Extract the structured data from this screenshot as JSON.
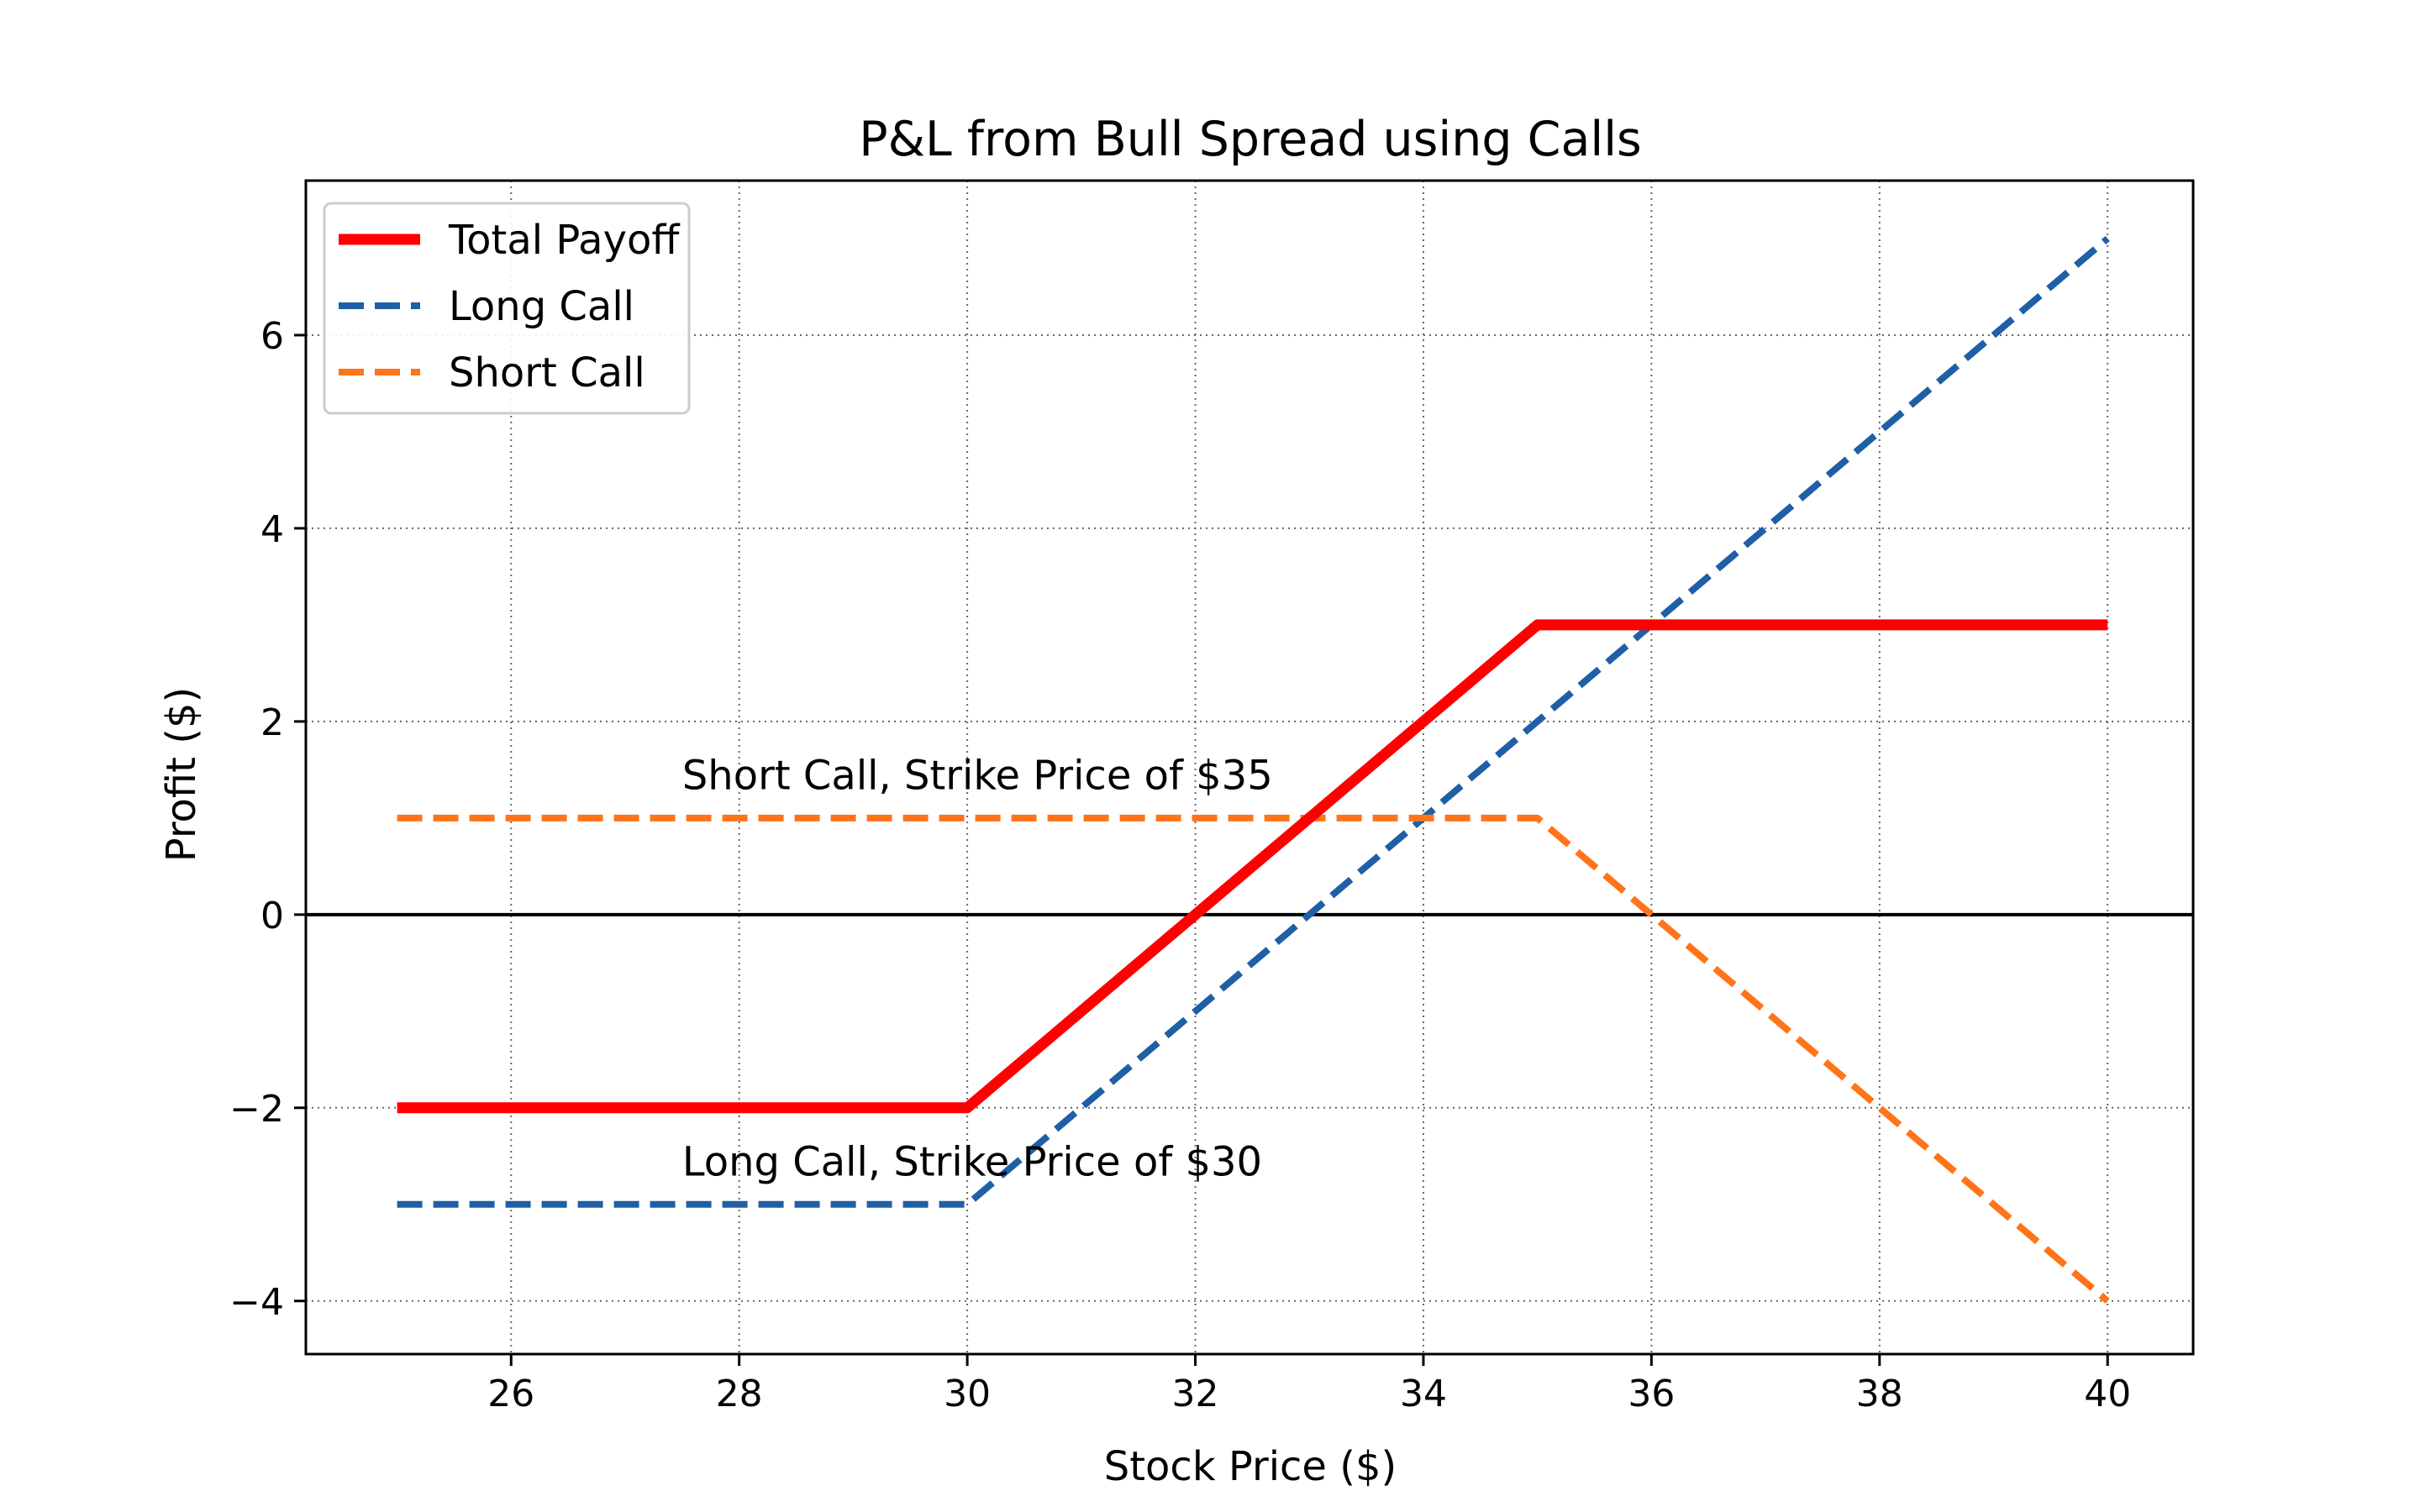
{
  "chart_data": {
    "type": "line",
    "title": "P&L from Bull Spread using Calls",
    "xlabel": "Stock Price ($)",
    "ylabel": "Profit ($)",
    "xlim": [
      24.2,
      40.75
    ],
    "ylim": [
      -4.55,
      7.6
    ],
    "xticks": [
      26,
      28,
      30,
      32,
      34,
      36,
      38,
      40
    ],
    "xtick_labels": [
      "26",
      "28",
      "30",
      "32",
      "34",
      "36",
      "38",
      "40"
    ],
    "yticks": [
      -4,
      -2,
      0,
      2,
      4,
      6
    ],
    "ytick_labels": [
      "−4",
      "−2",
      "0",
      "2",
      "4",
      "6"
    ],
    "grid": true,
    "grid_style": "dotted",
    "legend_position": "top-left",
    "zero_line": true,
    "series": [
      {
        "name": "Total Payoff",
        "color": "#ff0000",
        "style": "solid",
        "points": [
          [
            25,
            -2
          ],
          [
            30,
            -2
          ],
          [
            35,
            3
          ],
          [
            40,
            3
          ]
        ]
      },
      {
        "name": "Long Call",
        "color": "#1f5fa6",
        "style": "dashed",
        "points": [
          [
            25,
            -3
          ],
          [
            30,
            -3
          ],
          [
            40,
            7
          ]
        ]
      },
      {
        "name": "Short Call",
        "color": "#ff7418",
        "style": "dashed",
        "points": [
          [
            25,
            1
          ],
          [
            35,
            1
          ],
          [
            40,
            -4
          ]
        ]
      }
    ],
    "annotations": [
      {
        "text": "Short Call, Strike Price of $35",
        "x": 27.5,
        "y": 1.3
      },
      {
        "text": "Long Call, Strike Price of $30",
        "x": 27.5,
        "y": -2.7
      }
    ]
  }
}
